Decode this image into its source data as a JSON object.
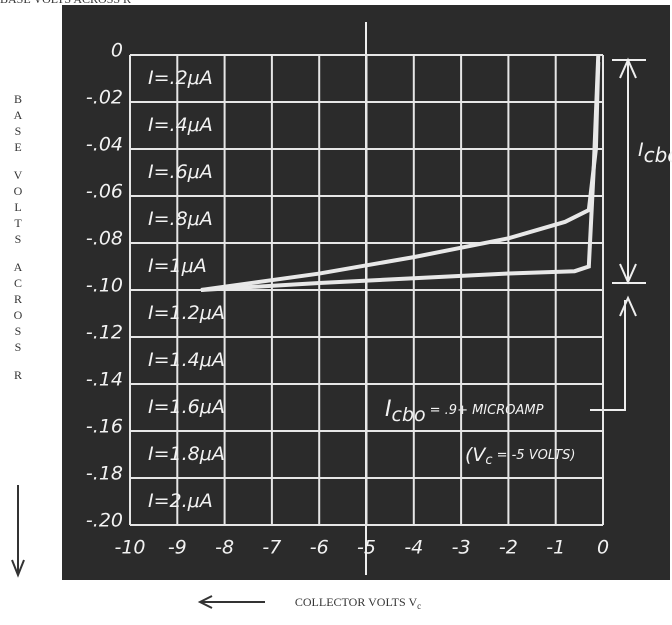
{
  "chart_data": {
    "type": "line",
    "y_axis_label": "BASE VOLTS ACROSS R",
    "x_axis_label": {
      "main": "COLLECTOR VOLTS V",
      "sub": "c"
    },
    "xlim": [
      -10,
      0
    ],
    "ylim": [
      -0.2,
      0
    ],
    "xticks": [
      -10,
      -9,
      -8,
      -7,
      -6,
      -5,
      -4,
      -3,
      -2,
      -1,
      0
    ],
    "yticks": [
      {
        "value": 0,
        "label": "0"
      },
      {
        "value": -0.02,
        "label": "-.02"
      },
      {
        "value": -0.04,
        "label": "-.04"
      },
      {
        "value": -0.06,
        "label": "-.06"
      },
      {
        "value": -0.08,
        "label": "-.08"
      },
      {
        "value": -0.1,
        "label": "-.10"
      },
      {
        "value": -0.12,
        "label": "-.12"
      },
      {
        "value": -0.14,
        "label": "-.14"
      },
      {
        "value": -0.16,
        "label": "-.16"
      },
      {
        "value": -0.18,
        "label": "-.18"
      },
      {
        "value": -0.2,
        "label": "-.20"
      }
    ],
    "grid": true,
    "row_labels": [
      "I=.2μA",
      "I=.4μA",
      "I=.6μA",
      "I=.8μA",
      "I=1μA",
      "I=1.2μA",
      "I=1.4μA",
      "I=1.6μA",
      "I=1.8μA",
      "I=2.μA"
    ],
    "series": [
      {
        "color": "#e8e8e8",
        "x": [
          -8.5,
          -6,
          -4,
          -2,
          -0.8,
          -0.3,
          -0.15,
          -0.1
        ],
        "values": [
          -0.1,
          -0.093,
          -0.086,
          -0.078,
          -0.071,
          -0.066,
          -0.04,
          -0.003
        ]
      },
      {
        "color": "#e8e8e8",
        "x": [
          -8.5,
          -6,
          -4,
          -2,
          -0.6,
          -0.3,
          -0.2,
          -0.1
        ],
        "values": [
          -0.1,
          -0.097,
          -0.095,
          -0.093,
          -0.092,
          -0.09,
          -0.05,
          0
        ]
      }
    ],
    "icbo_label": {
      "main": "I",
      "sub": "cbo"
    },
    "annotation": {
      "main": "I",
      "sub": "cbo",
      "rest": "= .9+ MICROAMP"
    },
    "annotation2": {
      "open": "(V",
      "sub": "c",
      "rest": "= -5 VOLTS)"
    }
  }
}
